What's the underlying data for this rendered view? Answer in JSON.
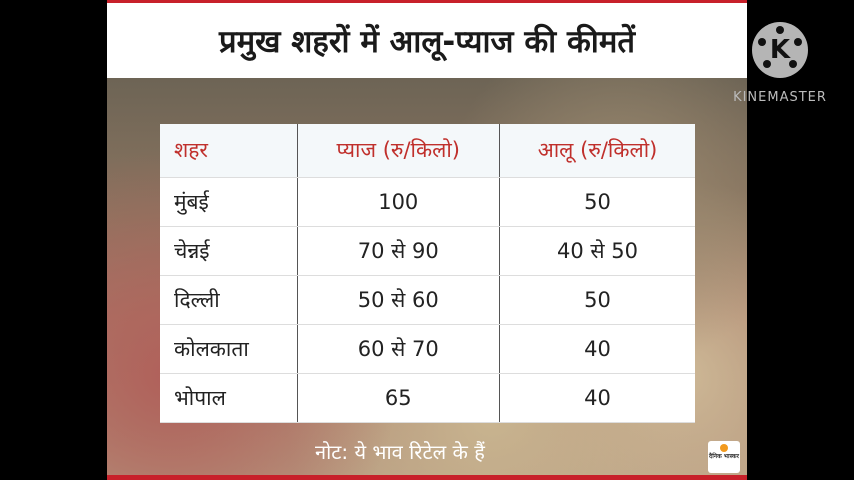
{
  "title": "प्रमुख शहरों में आलू-प्याज की कीमतें",
  "table": {
    "headers": [
      "शहर",
      "प्याज (रु/किलो)",
      "आलू (रु/किलो)"
    ],
    "rows": [
      [
        "मुंबई",
        "100",
        "50"
      ],
      [
        "चेन्नई",
        "70 से 90",
        "40 से 50"
      ],
      [
        "दिल्ली",
        "50 से 60",
        "50"
      ],
      [
        "कोलकाता",
        "60 से 70",
        "40"
      ],
      [
        "भोपाल",
        "65",
        "40"
      ]
    ]
  },
  "note": "नोट: ये भाव रिटेल के हैं",
  "source_logo": "दैनिक भास्कर",
  "watermark": {
    "icon_letter": "K",
    "label": "KINEMASTER"
  },
  "colors": {
    "accent": "#c8202a",
    "header_text": "#c0302c"
  }
}
